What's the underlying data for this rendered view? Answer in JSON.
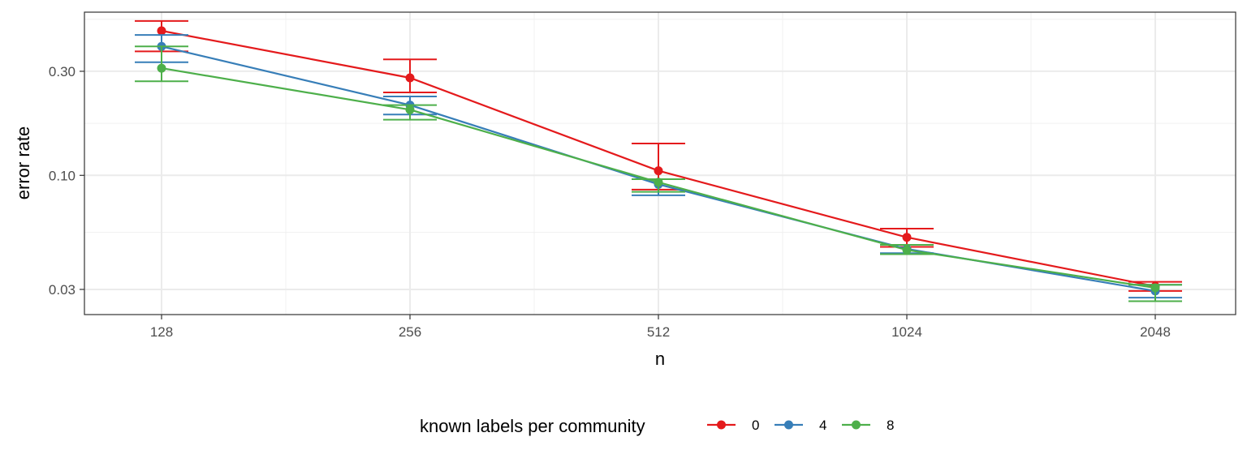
{
  "chart_data": {
    "type": "line",
    "xlabel": "n",
    "ylabel": "error rate",
    "x_scale": "log2",
    "y_scale": "log10",
    "categories": [
      "128",
      "256",
      "512",
      "1024",
      "2048"
    ],
    "y_ticks": [
      0.03,
      0.1,
      0.3
    ],
    "y_tick_labels": [
      "0.03",
      "0.10",
      "0.30"
    ],
    "ylim": [
      0.023,
      0.56
    ],
    "grid": true,
    "legend": {
      "title": "known labels per community",
      "position": "bottom"
    },
    "series": [
      {
        "name": "0",
        "color": "#e41a1c",
        "values": [
          0.46,
          0.28,
          0.105,
          0.052,
          0.031
        ],
        "lower": [
          0.37,
          0.24,
          0.086,
          0.047,
          0.0295
        ],
        "upper": [
          0.51,
          0.34,
          0.14,
          0.057,
          0.0325
        ]
      },
      {
        "name": "4",
        "color": "#377eb8",
        "values": [
          0.39,
          0.21,
          0.091,
          0.046,
          0.0295
        ],
        "lower": [
          0.33,
          0.19,
          0.081,
          0.044,
          0.0275
        ],
        "upper": [
          0.44,
          0.23,
          0.096,
          0.048,
          0.0315
        ]
      },
      {
        "name": "8",
        "color": "#4daf4a",
        "values": [
          0.31,
          0.2,
          0.093,
          0.0455,
          0.0305
        ],
        "lower": [
          0.27,
          0.18,
          0.084,
          0.0435,
          0.0265
        ],
        "upper": [
          0.39,
          0.21,
          0.096,
          0.048,
          0.0315
        ]
      }
    ]
  }
}
